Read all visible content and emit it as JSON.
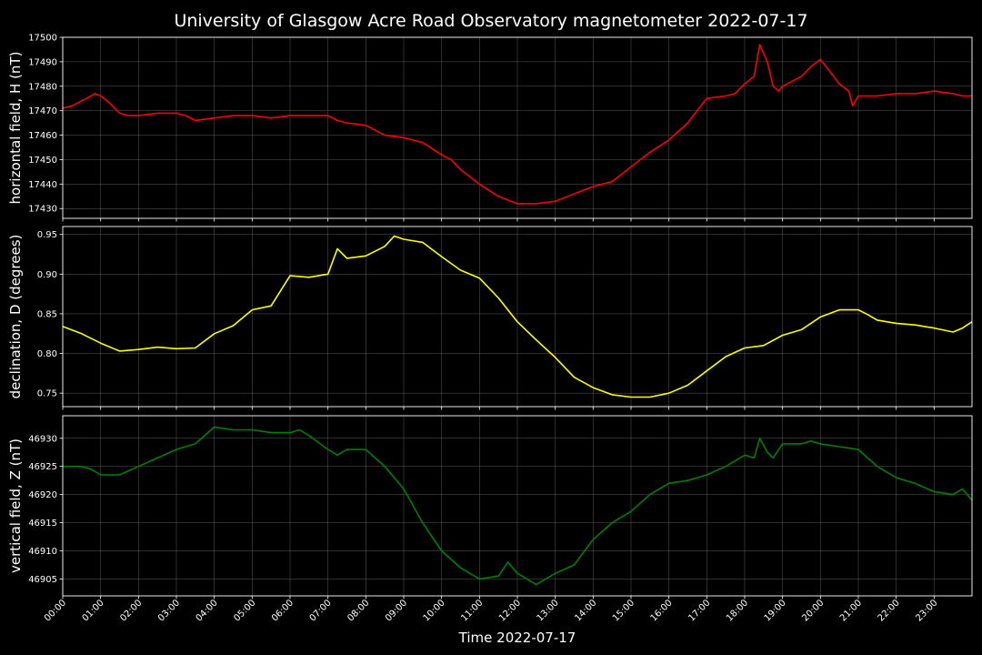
{
  "figure": {
    "title": "University of Glasgow Acre Road Observatory magnetometer 2022-07-17",
    "xlabel": "Time 2022-07-17",
    "background": "#000000",
    "grid_color": "#808080"
  },
  "chart_data": [
    {
      "type": "line",
      "name": "horizontal",
      "ylabel": "horizontal field, H (nT)",
      "color": "#ff0000",
      "ylim": [
        17426,
        17500
      ],
      "yticks": [
        17430,
        17440,
        17450,
        17460,
        17470,
        17480,
        17490,
        17500
      ],
      "xlim": [
        0,
        24
      ],
      "grid": true,
      "x": [
        0,
        0.25,
        0.5,
        0.75,
        0.85,
        1,
        1.25,
        1.5,
        1.75,
        2,
        2.5,
        3,
        3.25,
        3.5,
        4,
        4.5,
        5,
        5.5,
        6,
        6.5,
        7,
        7.25,
        7.5,
        8,
        8.5,
        9,
        9.5,
        10,
        10.25,
        10.5,
        11,
        11.5,
        12,
        12.5,
        13,
        13.5,
        14,
        14.5,
        15,
        15.5,
        16,
        16.5,
        17,
        17.5,
        17.75,
        18,
        18.25,
        18.4,
        18.6,
        18.75,
        18.9,
        19,
        19.25,
        19.5,
        19.75,
        20,
        20.25,
        20.5,
        20.75,
        20.85,
        21,
        21.25,
        21.5,
        22,
        22.5,
        23,
        23.5,
        23.75,
        24
      ],
      "y": [
        17471,
        17472,
        17474,
        17476,
        17477,
        17476,
        17473,
        17469,
        17468,
        17468,
        17469,
        17469,
        17468,
        17466,
        17467,
        17468,
        17468,
        17467,
        17468,
        17468,
        17468,
        17466,
        17465,
        17464,
        17460,
        17459,
        17457,
        17452,
        17450,
        17446,
        17440,
        17435,
        17432,
        17432,
        17433,
        17436,
        17439,
        17441,
        17447,
        17453,
        17458,
        17465,
        17475,
        17476,
        17477,
        17481,
        17484,
        17497,
        17490,
        17480,
        17478,
        17480,
        17482,
        17484,
        17488,
        17491,
        17486,
        17481,
        17478,
        17472,
        17476,
        17476,
        17476,
        17477,
        17477,
        17478,
        17477,
        17476,
        17476
      ]
    },
    {
      "type": "line",
      "name": "declination",
      "ylabel": "declination, D (degrees)",
      "color": "#ffff00",
      "ylim": [
        0.733,
        0.96
      ],
      "yticks": [
        0.75,
        0.8,
        0.85,
        0.9,
        0.95
      ],
      "xlim": [
        0,
        24
      ],
      "grid": true,
      "x": [
        0,
        0.5,
        1,
        1.5,
        2,
        2.5,
        3,
        3.5,
        4,
        4.5,
        5,
        5.5,
        6,
        6.5,
        7,
        7.25,
        7.5,
        8,
        8.5,
        8.75,
        9,
        9.5,
        10,
        10.5,
        11,
        11.5,
        12,
        12.5,
        13,
        13.5,
        14,
        14.5,
        15,
        15.5,
        16,
        16.5,
        17,
        17.5,
        18,
        18.5,
        19,
        19.5,
        20,
        20.5,
        21,
        21.25,
        21.5,
        22,
        22.5,
        23,
        23.5,
        23.75,
        24
      ],
      "y": [
        0.834,
        0.825,
        0.813,
        0.803,
        0.805,
        0.808,
        0.806,
        0.807,
        0.825,
        0.835,
        0.855,
        0.86,
        0.898,
        0.896,
        0.9,
        0.932,
        0.92,
        0.923,
        0.935,
        0.948,
        0.944,
        0.94,
        0.922,
        0.905,
        0.895,
        0.87,
        0.84,
        0.817,
        0.795,
        0.77,
        0.757,
        0.748,
        0.745,
        0.745,
        0.75,
        0.76,
        0.778,
        0.796,
        0.807,
        0.81,
        0.823,
        0.83,
        0.846,
        0.855,
        0.855,
        0.849,
        0.842,
        0.838,
        0.836,
        0.832,
        0.827,
        0.832,
        0.84
      ]
    },
    {
      "type": "line",
      "name": "vertical",
      "ylabel": "vertical field, Z (nT)",
      "color": "#008000",
      "ylim": [
        46902,
        46934
      ],
      "yticks": [
        46905,
        46910,
        46915,
        46920,
        46925,
        46930
      ],
      "xlim": [
        0,
        24
      ],
      "grid": true,
      "x": [
        0,
        0.5,
        0.75,
        1,
        1.5,
        2,
        2.5,
        3,
        3.5,
        4,
        4.5,
        5,
        5.5,
        6,
        6.25,
        6.5,
        7,
        7.25,
        7.5,
        8,
        8.5,
        9,
        9.5,
        10,
        10.5,
        11,
        11.5,
        11.75,
        12,
        12.25,
        12.5,
        13,
        13.5,
        14,
        14.5,
        15,
        15.5,
        16,
        16.5,
        17,
        17.5,
        18,
        18.25,
        18.4,
        18.6,
        18.75,
        19,
        19.5,
        19.75,
        20,
        20.5,
        21,
        21.5,
        22,
        22.5,
        23,
        23.5,
        23.75,
        24
      ],
      "y": [
        46925,
        46925,
        46924.5,
        46923.5,
        46923.5,
        46925,
        46926.5,
        46928,
        46929,
        46932,
        46931.5,
        46931.5,
        46931,
        46931,
        46931.5,
        46930.5,
        46928,
        46927,
        46928,
        46928,
        46925,
        46921,
        46915,
        46910,
        46907,
        46905,
        46905.5,
        46908,
        46906,
        46905,
        46904,
        46906,
        46907.5,
        46912,
        46915,
        46917,
        46920,
        46922,
        46922.5,
        46923.5,
        46925,
        46927,
        46926.5,
        46930,
        46927.5,
        46926.5,
        46929,
        46929,
        46929.5,
        46929,
        46928.5,
        46928,
        46925,
        46923,
        46922,
        46920.5,
        46920,
        46921,
        46919
      ]
    }
  ],
  "x_ticks": [
    "00:00",
    "01:00",
    "02:00",
    "03:00",
    "04:00",
    "05:00",
    "06:00",
    "07:00",
    "08:00",
    "09:00",
    "10:00",
    "11:00",
    "12:00",
    "13:00",
    "14:00",
    "15:00",
    "16:00",
    "17:00",
    "18:00",
    "19:00",
    "20:00",
    "21:00",
    "22:00",
    "23:00"
  ]
}
